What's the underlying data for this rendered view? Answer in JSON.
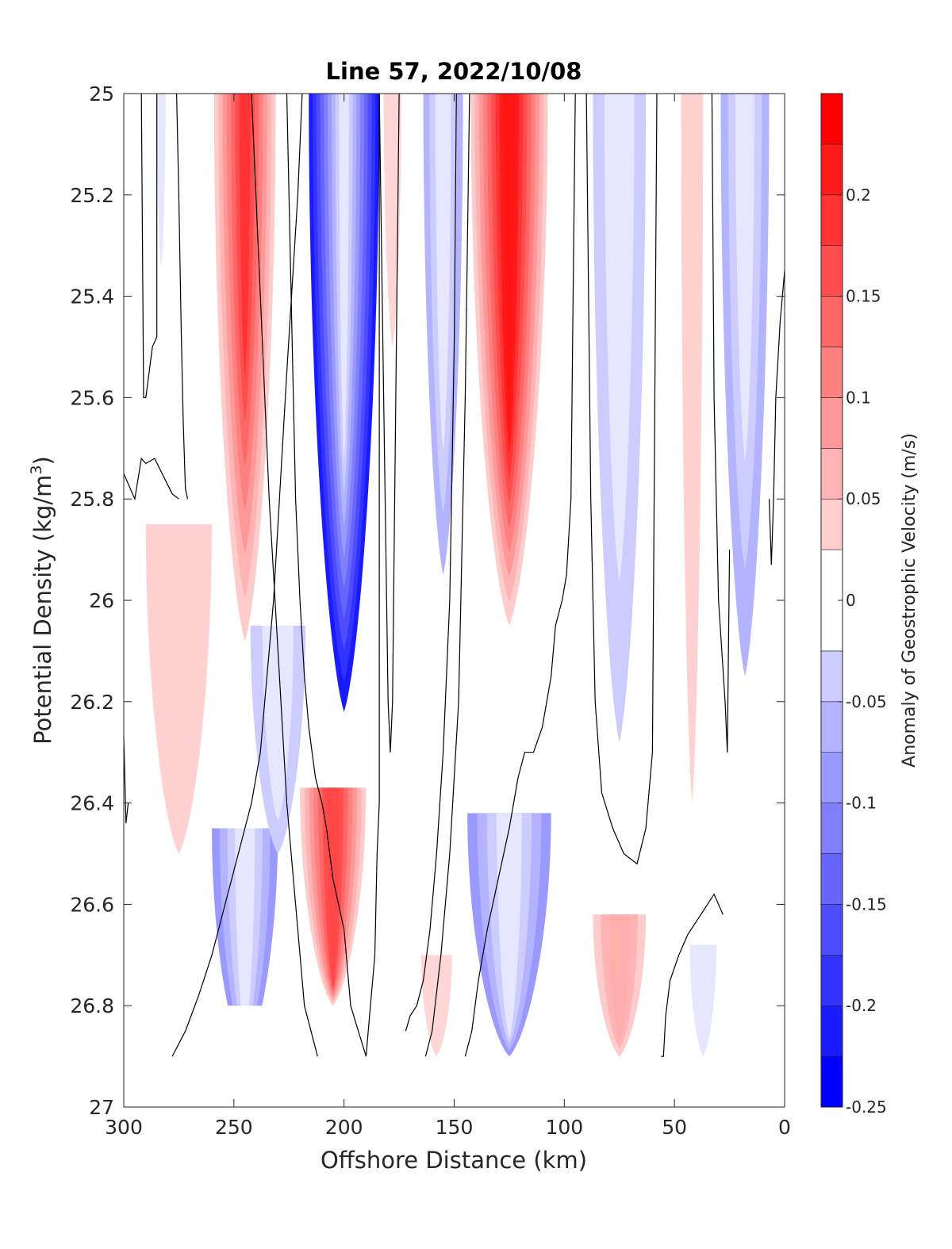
{
  "chart_data": {
    "type": "heatmap",
    "subtype": "filled-contour",
    "title": "Line 57, 2022/10/08",
    "xlabel": "Offshore Distance (km)",
    "ylabel_main": "Potential Density (kg/m",
    "ylabel_sup": "3",
    "ylabel_close": ")",
    "colorbar_label": "Anomaly of Geostrophic Velocity (m/s)",
    "xlim": [
      300,
      0
    ],
    "x_reversed": true,
    "ylim": [
      25,
      27
    ],
    "y_reversed": true,
    "xticks": [
      300,
      250,
      200,
      150,
      100,
      50,
      0
    ],
    "xtick_labels": [
      "300",
      "250",
      "200",
      "150",
      "100",
      "50",
      "0"
    ],
    "yticks": [
      25,
      25.2,
      25.4,
      25.6,
      25.8,
      26,
      26.2,
      26.4,
      26.6,
      26.8,
      27
    ],
    "ytick_labels": [
      "25",
      "25.2",
      "25.4",
      "25.6",
      "25.8",
      "26",
      "26.2",
      "26.4",
      "26.6",
      "26.8",
      "27"
    ],
    "colorbar_range": [
      -0.25,
      0.25
    ],
    "colorbar_ticks": [
      0.2,
      0.15,
      0.1,
      0.05,
      0,
      -0.05,
      -0.1,
      -0.15,
      -0.2,
      -0.25
    ],
    "colorbar_tick_labels": [
      "0.2",
      "0.15",
      "0.1",
      "0.05",
      "0",
      "-0.05",
      "-0.1",
      "-0.15",
      "-0.2",
      "-0.25"
    ],
    "levels": [
      -0.25,
      -0.225,
      -0.2,
      -0.175,
      -0.15,
      -0.125,
      -0.1,
      -0.075,
      -0.05,
      -0.025,
      0.025,
      0.05,
      0.075,
      0.1,
      0.125,
      0.15,
      0.175,
      0.2,
      0.225,
      0.25
    ],
    "colormap": {
      "negative": "#0000ff",
      "zero": "#ffffff",
      "positive": "#ff0000"
    },
    "data_x_range": [
      300,
      0
    ],
    "data_y_range": [
      25,
      26.9
    ],
    "masked_region": {
      "x": [
        295,
        185
      ],
      "y": [
        26.8,
        26.9
      ]
    },
    "features": [
      {
        "x": 245,
        "y_top": 25,
        "y_bottom": 26.08,
        "width": 28,
        "peak": 0.2,
        "core_bottom": 25.45
      },
      {
        "x": 200,
        "y_top": 25,
        "y_bottom": 26.22,
        "width": 32,
        "peak": -0.25,
        "core_bottom": 25.65
      },
      {
        "x": 178,
        "y_top": 25,
        "y_bottom": 25.5,
        "width": 8,
        "peak": 0.04,
        "core_bottom": 25.2
      },
      {
        "x": 155,
        "y_top": 25,
        "y_bottom": 25.95,
        "width": 18,
        "peak": -0.09,
        "core_bottom": 25.55
      },
      {
        "x": 125,
        "y_top": 25,
        "y_bottom": 26.05,
        "width": 35,
        "peak": 0.23,
        "core_bottom": 25.6
      },
      {
        "x": 75,
        "y_top": 25,
        "y_bottom": 26.28,
        "width": 24,
        "peak": -0.07,
        "core_bottom": 25.55
      },
      {
        "x": 42,
        "y_top": 25,
        "y_bottom": 26.4,
        "width": 10,
        "peak": 0.045,
        "core_bottom": 26.2
      },
      {
        "x": 18,
        "y_top": 25,
        "y_bottom": 26.15,
        "width": 22,
        "peak": -0.09,
        "core_bottom": 25.45
      },
      {
        "x": 283,
        "y_top": 25,
        "y_bottom": 25.34,
        "width": 4,
        "peak": -0.03,
        "core_bottom": 25.2
      },
      {
        "x": 275,
        "y_top": 25.85,
        "y_bottom": 26.5,
        "width": 30,
        "peak": 0.045,
        "core_bottom": 26.3
      },
      {
        "x": 245,
        "y_top": 26.45,
        "y_bottom": 26.9,
        "width": 30,
        "peak": -0.12,
        "core_bottom": 26.85
      },
      {
        "x": 205,
        "y_top": 26.37,
        "y_bottom": 26.8,
        "width": 30,
        "peak": 0.18,
        "core_bottom": 26.75
      },
      {
        "x": 125,
        "y_top": 26.42,
        "y_bottom": 26.9,
        "width": 38,
        "peak": -0.11,
        "core_bottom": 26.85
      },
      {
        "x": 75,
        "y_top": 26.62,
        "y_bottom": 26.9,
        "width": 24,
        "peak": 0.08,
        "core_bottom": 26.85
      },
      {
        "x": 37,
        "y_top": 26.68,
        "y_bottom": 26.9,
        "width": 12,
        "peak": -0.05,
        "core_bottom": 26.85
      },
      {
        "x": 158,
        "y_top": 26.7,
        "y_bottom": 26.9,
        "width": 14,
        "peak": 0.04,
        "core_bottom": 26.85
      },
      {
        "x": 230,
        "y_top": 26.05,
        "y_bottom": 26.5,
        "width": 25,
        "peak": -0.06,
        "core_bottom": 26.35
      }
    ],
    "zero_contours": [
      {
        "x": [
          292,
          291,
          290,
          287,
          285,
          285
        ],
        "y": [
          25,
          25.6,
          25.6,
          25.5,
          25.48,
          25
        ]
      },
      {
        "x": [
          300,
          295,
          292,
          290,
          286,
          278,
          275
        ],
        "y": [
          25.75,
          25.8,
          25.72,
          25.73,
          25.72,
          25.79,
          25.8
        ]
      },
      {
        "x": [
          276,
          275,
          274,
          273,
          272,
          271
        ],
        "y": [
          25,
          25.2,
          25.45,
          25.65,
          25.78,
          25.8
        ]
      },
      {
        "x": [
          300,
          299,
          298
        ],
        "y": [
          26.27,
          26.44,
          26.4
        ]
      },
      {
        "x": [
          226,
          224,
          222,
          220,
          218,
          216,
          213,
          210,
          208,
          205,
          200,
          197,
          190,
          186,
          185,
          184,
          184
        ],
        "y": [
          25,
          25.4,
          25.8,
          26,
          26.15,
          26.25,
          26.35,
          26.4,
          26.45,
          26.55,
          26.65,
          26.8,
          26.9,
          26.7,
          26.5,
          26.4,
          25
        ]
      },
      {
        "x": [
          242,
          238,
          234,
          230,
          226,
          222,
          218,
          215,
          212
        ],
        "y": [
          25,
          25.4,
          25.8,
          26.1,
          26.4,
          26.6,
          26.8,
          26.85,
          26.9
        ]
      },
      {
        "x": [
          278,
          272,
          266,
          260,
          254,
          248,
          242,
          238,
          236,
          234,
          232,
          230,
          226,
          221,
          219
        ],
        "y": [
          26.9,
          26.85,
          26.78,
          26.7,
          26.6,
          26.5,
          26.4,
          26.3,
          26.2,
          26.1,
          26.0,
          25.85,
          25.55,
          25.2,
          25
        ]
      },
      {
        "x": [
          184,
          182,
          180,
          179,
          178,
          177,
          176,
          175
        ],
        "y": [
          25,
          25.6,
          26.2,
          26.3,
          26.2,
          25.8,
          25.4,
          25
        ]
      },
      {
        "x": [
          149,
          150,
          152,
          155,
          158,
          161,
          164,
          167,
          170,
          172
        ],
        "y": [
          25,
          25.5,
          26.0,
          26.3,
          26.5,
          26.65,
          26.75,
          26.8,
          26.82,
          26.85
        ]
      },
      {
        "x": [
          143,
          145,
          148,
          152,
          156,
          160,
          163
        ],
        "y": [
          25,
          25.6,
          26.2,
          26.5,
          26.7,
          26.85,
          26.9
        ]
      },
      {
        "x": [
          95,
          96,
          97,
          99,
          101,
          104,
          106,
          110,
          114,
          118,
          121,
          125,
          130,
          135,
          139,
          142,
          145
        ],
        "y": [
          25,
          25.4,
          25.8,
          25.95,
          26.0,
          26.05,
          26.15,
          26.25,
          26.3,
          26.3,
          26.35,
          26.45,
          26.55,
          26.65,
          26.75,
          26.85,
          26.9
        ]
      },
      {
        "x": [
          90,
          88,
          86,
          83,
          78,
          73,
          67,
          63,
          60,
          58
        ],
        "y": [
          25,
          25.8,
          26.2,
          26.38,
          26.45,
          26.5,
          26.52,
          26.45,
          26.3,
          25
        ]
      },
      {
        "x": [
          33,
          32,
          30,
          27,
          26,
          25
        ],
        "y": [
          25,
          25.6,
          26.0,
          26.2,
          26.3,
          25.9
        ]
      },
      {
        "x": [
          28,
          32,
          38,
          44,
          48,
          52,
          54,
          55,
          56
        ],
        "y": [
          26.62,
          26.58,
          26.62,
          26.66,
          26.7,
          26.75,
          26.82,
          26.9,
          26.9
        ]
      },
      {
        "x": [
          0,
          2,
          4,
          5,
          6,
          7
        ],
        "y": [
          25.35,
          25.45,
          25.6,
          25.8,
          25.93,
          25.8
        ]
      }
    ]
  }
}
